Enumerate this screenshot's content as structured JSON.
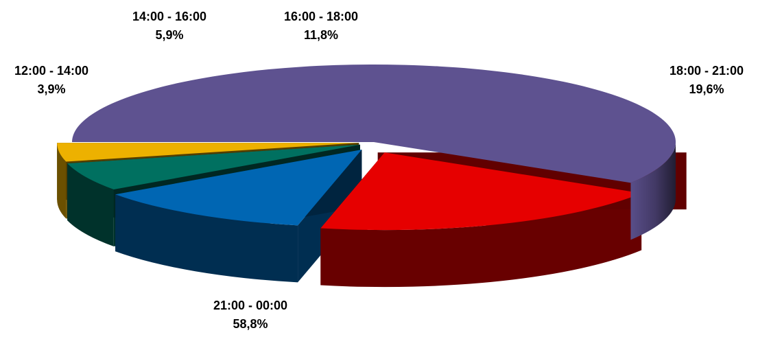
{
  "chart_data": {
    "type": "pie",
    "title": "",
    "three_d": true,
    "categories": [
      "21:00 - 00:00",
      "18:00 - 21:00",
      "16:00 - 18:00",
      "14:00 - 16:00",
      "12:00 - 14:00"
    ],
    "values": [
      58.8,
      19.6,
      11.8,
      5.9,
      3.9
    ],
    "value_labels": [
      "58,8%",
      "19,6%",
      "11,8%",
      "5,9%",
      "3,9%"
    ],
    "colors": [
      "#5E5290",
      "#E60000",
      "#0066B3",
      "#007060",
      "#EDB100"
    ],
    "legend": "none",
    "data_labels": "outside"
  }
}
